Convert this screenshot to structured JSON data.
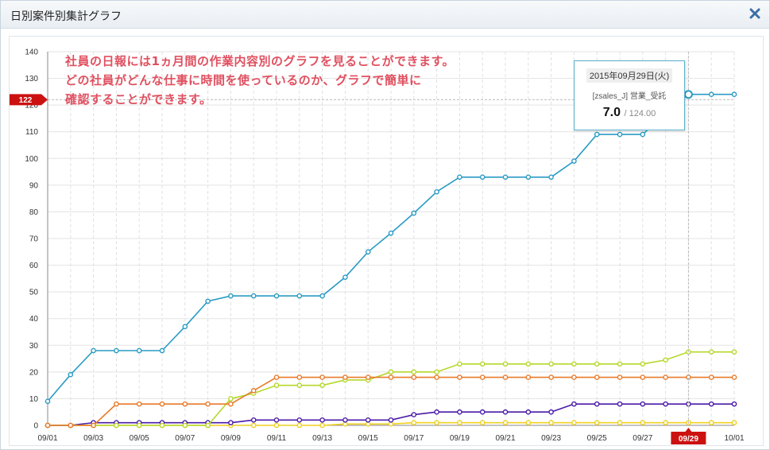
{
  "window": {
    "title": "日別案件別集計グラフ",
    "close_icon": "close-x-icon"
  },
  "annotation": {
    "lines": [
      "社員の日報には1ヵ月間の作業内容別のグラフを見ることができます。",
      "どの社員がどんな仕事に時間を使っているのか、グラフで簡単に",
      "確認することができます。"
    ]
  },
  "tooltip": {
    "date": "2015年09月29日(火)",
    "series": "[zsales_J] 営業_受託",
    "value": "7.0",
    "total": "/ 124.00"
  },
  "crosshair": {
    "y_value": 122,
    "y_label": "122",
    "x_label": "09/29",
    "x_index": 28
  },
  "chart_data": {
    "type": "line",
    "ylim": [
      0,
      140
    ],
    "yticks": [
      0,
      10,
      20,
      30,
      40,
      50,
      60,
      70,
      80,
      90,
      100,
      110,
      120,
      130,
      140
    ],
    "x": [
      "09/01",
      "09/02",
      "09/03",
      "09/04",
      "09/05",
      "09/06",
      "09/07",
      "09/08",
      "09/09",
      "09/10",
      "09/11",
      "09/12",
      "09/13",
      "09/14",
      "09/15",
      "09/16",
      "09/17",
      "09/18",
      "09/19",
      "09/20",
      "09/21",
      "09/22",
      "09/23",
      "09/24",
      "09/25",
      "09/26",
      "09/27",
      "09/28",
      "09/29",
      "09/30",
      "10/01"
    ],
    "xtick_labels": [
      "09/01",
      "09/03",
      "09/05",
      "09/07",
      "09/09",
      "09/11",
      "09/13",
      "09/15",
      "09/17",
      "09/19",
      "09/21",
      "09/23",
      "09/25",
      "09/27",
      "09/29",
      "10/01"
    ],
    "grid": true,
    "series": [
      {
        "color": "#2a9bc4",
        "values": [
          9,
          19,
          28,
          28,
          28,
          28,
          37,
          46.5,
          48.5,
          48.5,
          48.5,
          48.5,
          48.5,
          55.5,
          65,
          72,
          79.5,
          87.5,
          93,
          93,
          93,
          93,
          93,
          99,
          109,
          109,
          109,
          117,
          124,
          124,
          124
        ]
      },
      {
        "color": "#e87a2b",
        "values": [
          0,
          0,
          0,
          8,
          8,
          8,
          8,
          8,
          8,
          13,
          18,
          18,
          18,
          18,
          18,
          18,
          18,
          18,
          18,
          18,
          18,
          18,
          18,
          18,
          18,
          18,
          18,
          18,
          18,
          18,
          18
        ]
      },
      {
        "color": "#b5d82a",
        "values": [
          0,
          0,
          0,
          0,
          0,
          0,
          0,
          0,
          10,
          12,
          15,
          15,
          15,
          17,
          17,
          20,
          20,
          20,
          23,
          23,
          23,
          23,
          23,
          23,
          23,
          23,
          23,
          24.5,
          27.5,
          27.5,
          27.5
        ]
      },
      {
        "color": "#4a1aa8",
        "values": [
          0,
          0,
          1,
          1,
          1,
          1,
          1,
          1,
          1,
          2,
          2,
          2,
          2,
          2,
          2,
          2,
          4,
          5,
          5,
          5,
          5,
          5,
          5,
          8,
          8,
          8,
          8,
          8,
          8,
          8,
          8
        ]
      },
      {
        "color": "#f0d020",
        "values": [
          0,
          0,
          0,
          0,
          0,
          0,
          0,
          0,
          0,
          0,
          0,
          0,
          0,
          0.5,
          0.5,
          0.5,
          1,
          1,
          1,
          1,
          1,
          1,
          1,
          1,
          1,
          1,
          1,
          1,
          1,
          1,
          1
        ]
      }
    ]
  }
}
